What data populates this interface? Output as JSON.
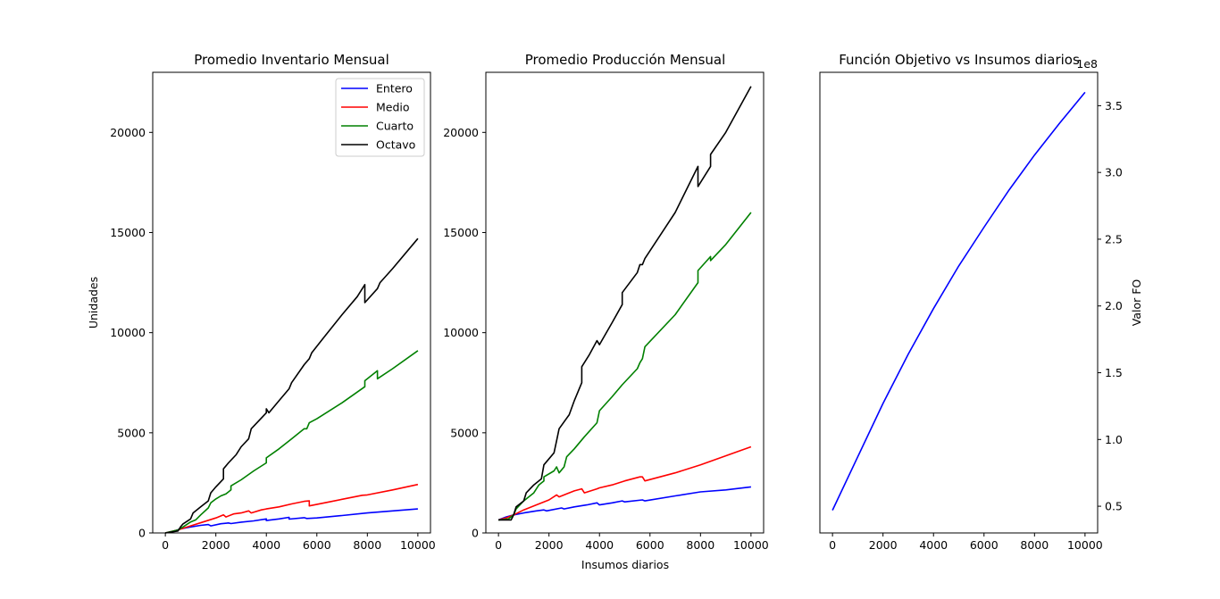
{
  "chart_data": [
    {
      "type": "line",
      "title": "Promedio Inventario Mensual",
      "xlabel": "",
      "ylabel": "Unidades",
      "xlim": [
        -500,
        10500
      ],
      "ylim": [
        0,
        23000
      ],
      "xticks": [
        0,
        2000,
        4000,
        6000,
        8000,
        10000
      ],
      "yticks": [
        0,
        5000,
        10000,
        15000,
        20000
      ],
      "legend": "top-right",
      "series": [
        {
          "name": "Entero",
          "color": "#0000ff",
          "points": [
            [
              0,
              0
            ],
            [
              300,
              80
            ],
            [
              600,
              200
            ],
            [
              1000,
              300
            ],
            [
              1400,
              380
            ],
            [
              1700,
              420
            ],
            [
              1800,
              350
            ],
            [
              2200,
              460
            ],
            [
              2500,
              500
            ],
            [
              2600,
              470
            ],
            [
              3000,
              540
            ],
            [
              3500,
              600
            ],
            [
              4000,
              700
            ],
            [
              4000,
              620
            ],
            [
              4500,
              700
            ],
            [
              4900,
              780
            ],
            [
              4900,
              690
            ],
            [
              5500,
              760
            ],
            [
              5600,
              720
            ],
            [
              6000,
              750
            ],
            [
              7000,
              870
            ],
            [
              8000,
              1000
            ],
            [
              9000,
              1100
            ],
            [
              10000,
              1200
            ]
          ]
        },
        {
          "name": "Medio",
          "color": "#ff0000",
          "points": [
            [
              0,
              0
            ],
            [
              500,
              150
            ],
            [
              1000,
              350
            ],
            [
              1500,
              550
            ],
            [
              2000,
              750
            ],
            [
              2300,
              900
            ],
            [
              2400,
              800
            ],
            [
              2700,
              950
            ],
            [
              3000,
              1000
            ],
            [
              3300,
              1100
            ],
            [
              3400,
              1000
            ],
            [
              3800,
              1150
            ],
            [
              4000,
              1200
            ],
            [
              4500,
              1300
            ],
            [
              5000,
              1450
            ],
            [
              5500,
              1580
            ],
            [
              5700,
              1600
            ],
            [
              5700,
              1350
            ],
            [
              6500,
              1550
            ],
            [
              7000,
              1680
            ],
            [
              7800,
              1880
            ],
            [
              8000,
              1900
            ],
            [
              9000,
              2150
            ],
            [
              10000,
              2420
            ]
          ]
        },
        {
          "name": "Cuarto",
          "color": "#008000",
          "points": [
            [
              0,
              0
            ],
            [
              500,
              150
            ],
            [
              700,
              300
            ],
            [
              1000,
              550
            ],
            [
              1200,
              650
            ],
            [
              1400,
              900
            ],
            [
              1700,
              1250
            ],
            [
              1800,
              1500
            ],
            [
              2000,
              1700
            ],
            [
              2200,
              1850
            ],
            [
              2400,
              1950
            ],
            [
              2600,
              2150
            ],
            [
              2600,
              2350
            ],
            [
              3000,
              2650
            ],
            [
              3500,
              3100
            ],
            [
              4000,
              3500
            ],
            [
              4000,
              3750
            ],
            [
              4500,
              4200
            ],
            [
              5000,
              4700
            ],
            [
              5500,
              5200
            ],
            [
              5600,
              5200
            ],
            [
              5700,
              5500
            ],
            [
              6000,
              5700
            ],
            [
              7000,
              6500
            ],
            [
              7900,
              7300
            ],
            [
              7900,
              7600
            ],
            [
              8300,
              8000
            ],
            [
              8400,
              8100
            ],
            [
              8400,
              7700
            ],
            [
              9000,
              8200
            ],
            [
              10000,
              9100
            ]
          ]
        },
        {
          "name": "Octavo",
          "color": "#000000",
          "points": [
            [
              0,
              0
            ],
            [
              500,
              100
            ],
            [
              600,
              300
            ],
            [
              700,
              450
            ],
            [
              1000,
              700
            ],
            [
              1100,
              1000
            ],
            [
              1400,
              1300
            ],
            [
              1700,
              1600
            ],
            [
              1800,
              2000
            ],
            [
              2000,
              2300
            ],
            [
              2300,
              2700
            ],
            [
              2300,
              3200
            ],
            [
              2500,
              3500
            ],
            [
              2800,
              3900
            ],
            [
              3000,
              4300
            ],
            [
              3300,
              4700
            ],
            [
              3400,
              5200
            ],
            [
              3700,
              5600
            ],
            [
              4000,
              6000
            ],
            [
              4000,
              6200
            ],
            [
              4100,
              6000
            ],
            [
              4500,
              6600
            ],
            [
              4900,
              7200
            ],
            [
              5000,
              7500
            ],
            [
              5500,
              8400
            ],
            [
              5700,
              8700
            ],
            [
              5800,
              9000
            ],
            [
              6300,
              9800
            ],
            [
              7000,
              10900
            ],
            [
              7600,
              11800
            ],
            [
              7900,
              12400
            ],
            [
              7900,
              11500
            ],
            [
              8400,
              12200
            ],
            [
              8500,
              12500
            ],
            [
              9000,
              13200
            ],
            [
              10000,
              14700
            ]
          ]
        }
      ]
    },
    {
      "type": "line",
      "title": "Promedio Producción Mensual",
      "xlabel": "Insumos diarios",
      "ylabel": "",
      "xlim": [
        -500,
        10500
      ],
      "ylim": [
        0,
        23000
      ],
      "xticks": [
        0,
        2000,
        4000,
        6000,
        8000,
        10000
      ],
      "yticks": [
        0,
        5000,
        10000,
        15000,
        20000
      ],
      "series": [
        {
          "name": "Entero",
          "color": "#0000ff",
          "points": [
            [
              0,
              650
            ],
            [
              300,
              800
            ],
            [
              600,
              900
            ],
            [
              1000,
              1000
            ],
            [
              1500,
              1100
            ],
            [
              1800,
              1150
            ],
            [
              1900,
              1100
            ],
            [
              2500,
              1250
            ],
            [
              2600,
              1200
            ],
            [
              3000,
              1300
            ],
            [
              3500,
              1400
            ],
            [
              3900,
              1500
            ],
            [
              4000,
              1400
            ],
            [
              4500,
              1500
            ],
            [
              4900,
              1600
            ],
            [
              5000,
              1550
            ],
            [
              5700,
              1650
            ],
            [
              5800,
              1600
            ],
            [
              7000,
              1850
            ],
            [
              8000,
              2050
            ],
            [
              9000,
              2150
            ],
            [
              10000,
              2300
            ]
          ]
        },
        {
          "name": "Medio",
          "color": "#ff0000",
          "points": [
            [
              0,
              650
            ],
            [
              300,
              750
            ],
            [
              600,
              900
            ],
            [
              1000,
              1150
            ],
            [
              1500,
              1400
            ],
            [
              2000,
              1650
            ],
            [
              2300,
              1900
            ],
            [
              2400,
              1800
            ],
            [
              2800,
              2000
            ],
            [
              3000,
              2100
            ],
            [
              3300,
              2200
            ],
            [
              3400,
              2000
            ],
            [
              3900,
              2200
            ],
            [
              4000,
              2250
            ],
            [
              4500,
              2400
            ],
            [
              5000,
              2600
            ],
            [
              5600,
              2800
            ],
            [
              5700,
              2800
            ],
            [
              5800,
              2600
            ],
            [
              7000,
              3000
            ],
            [
              8000,
              3400
            ],
            [
              9000,
              3850
            ],
            [
              10000,
              4300
            ]
          ]
        },
        {
          "name": "Cuarto",
          "color": "#008000",
          "points": [
            [
              0,
              650
            ],
            [
              400,
              700
            ],
            [
              600,
              900
            ],
            [
              700,
              1200
            ],
            [
              1000,
              1600
            ],
            [
              1400,
              2000
            ],
            [
              1600,
              2400
            ],
            [
              1800,
              2600
            ],
            [
              1800,
              2800
            ],
            [
              2200,
              3100
            ],
            [
              2300,
              3300
            ],
            [
              2400,
              3000
            ],
            [
              2600,
              3300
            ],
            [
              2700,
              3800
            ],
            [
              3000,
              4200
            ],
            [
              3400,
              4800
            ],
            [
              3900,
              5500
            ],
            [
              4000,
              6100
            ],
            [
              4500,
              6800
            ],
            [
              4900,
              7400
            ],
            [
              5500,
              8200
            ],
            [
              5600,
              8500
            ],
            [
              5700,
              8700
            ],
            [
              5800,
              9300
            ],
            [
              7000,
              10900
            ],
            [
              7900,
              12500
            ],
            [
              7900,
              13100
            ],
            [
              8400,
              13800
            ],
            [
              8400,
              13600
            ],
            [
              9000,
              14400
            ],
            [
              10000,
              16000
            ]
          ]
        },
        {
          "name": "Octavo",
          "color": "#000000",
          "points": [
            [
              0,
              650
            ],
            [
              500,
              650
            ],
            [
              600,
              900
            ],
            [
              700,
              1300
            ],
            [
              1000,
              1600
            ],
            [
              1100,
              2000
            ],
            [
              1400,
              2400
            ],
            [
              1700,
              2700
            ],
            [
              1800,
              3400
            ],
            [
              2200,
              4000
            ],
            [
              2300,
              4600
            ],
            [
              2400,
              5200
            ],
            [
              2800,
              5900
            ],
            [
              3000,
              6600
            ],
            [
              3300,
              7500
            ],
            [
              3300,
              8300
            ],
            [
              3600,
              8900
            ],
            [
              3900,
              9600
            ],
            [
              4000,
              9400
            ],
            [
              4500,
              10500
            ],
            [
              4900,
              11400
            ],
            [
              4900,
              12000
            ],
            [
              5500,
              13000
            ],
            [
              5600,
              13400
            ],
            [
              5700,
              13400
            ],
            [
              5800,
              13700
            ],
            [
              7000,
              16000
            ],
            [
              7900,
              18300
            ],
            [
              7900,
              17300
            ],
            [
              8400,
              18300
            ],
            [
              8400,
              18900
            ],
            [
              9000,
              20000
            ],
            [
              10000,
              22300
            ]
          ]
        }
      ]
    },
    {
      "type": "line",
      "title": "Función Objetivo vs Insumos diarios",
      "xlabel": "",
      "ylabel": "Valor FO",
      "y_axis_side": "right",
      "offset_text": "1e8",
      "xlim": [
        -500,
        10500
      ],
      "ylim": [
        0.3,
        3.75
      ],
      "xticks": [
        0,
        2000,
        4000,
        6000,
        8000,
        10000
      ],
      "yticks": [
        "0.5",
        "1.0",
        "1.5",
        "2.0",
        "2.5",
        "3.0",
        "3.5"
      ],
      "series": [
        {
          "name": "",
          "color": "#0000ff",
          "points": [
            [
              0,
              0.47
            ],
            [
              1000,
              0.87
            ],
            [
              2000,
              1.27
            ],
            [
              3000,
              1.64
            ],
            [
              4000,
              1.98
            ],
            [
              5000,
              2.3
            ],
            [
              6000,
              2.59
            ],
            [
              7000,
              2.87
            ],
            [
              8000,
              3.13
            ],
            [
              9000,
              3.37
            ],
            [
              10000,
              3.6
            ]
          ]
        }
      ]
    }
  ]
}
